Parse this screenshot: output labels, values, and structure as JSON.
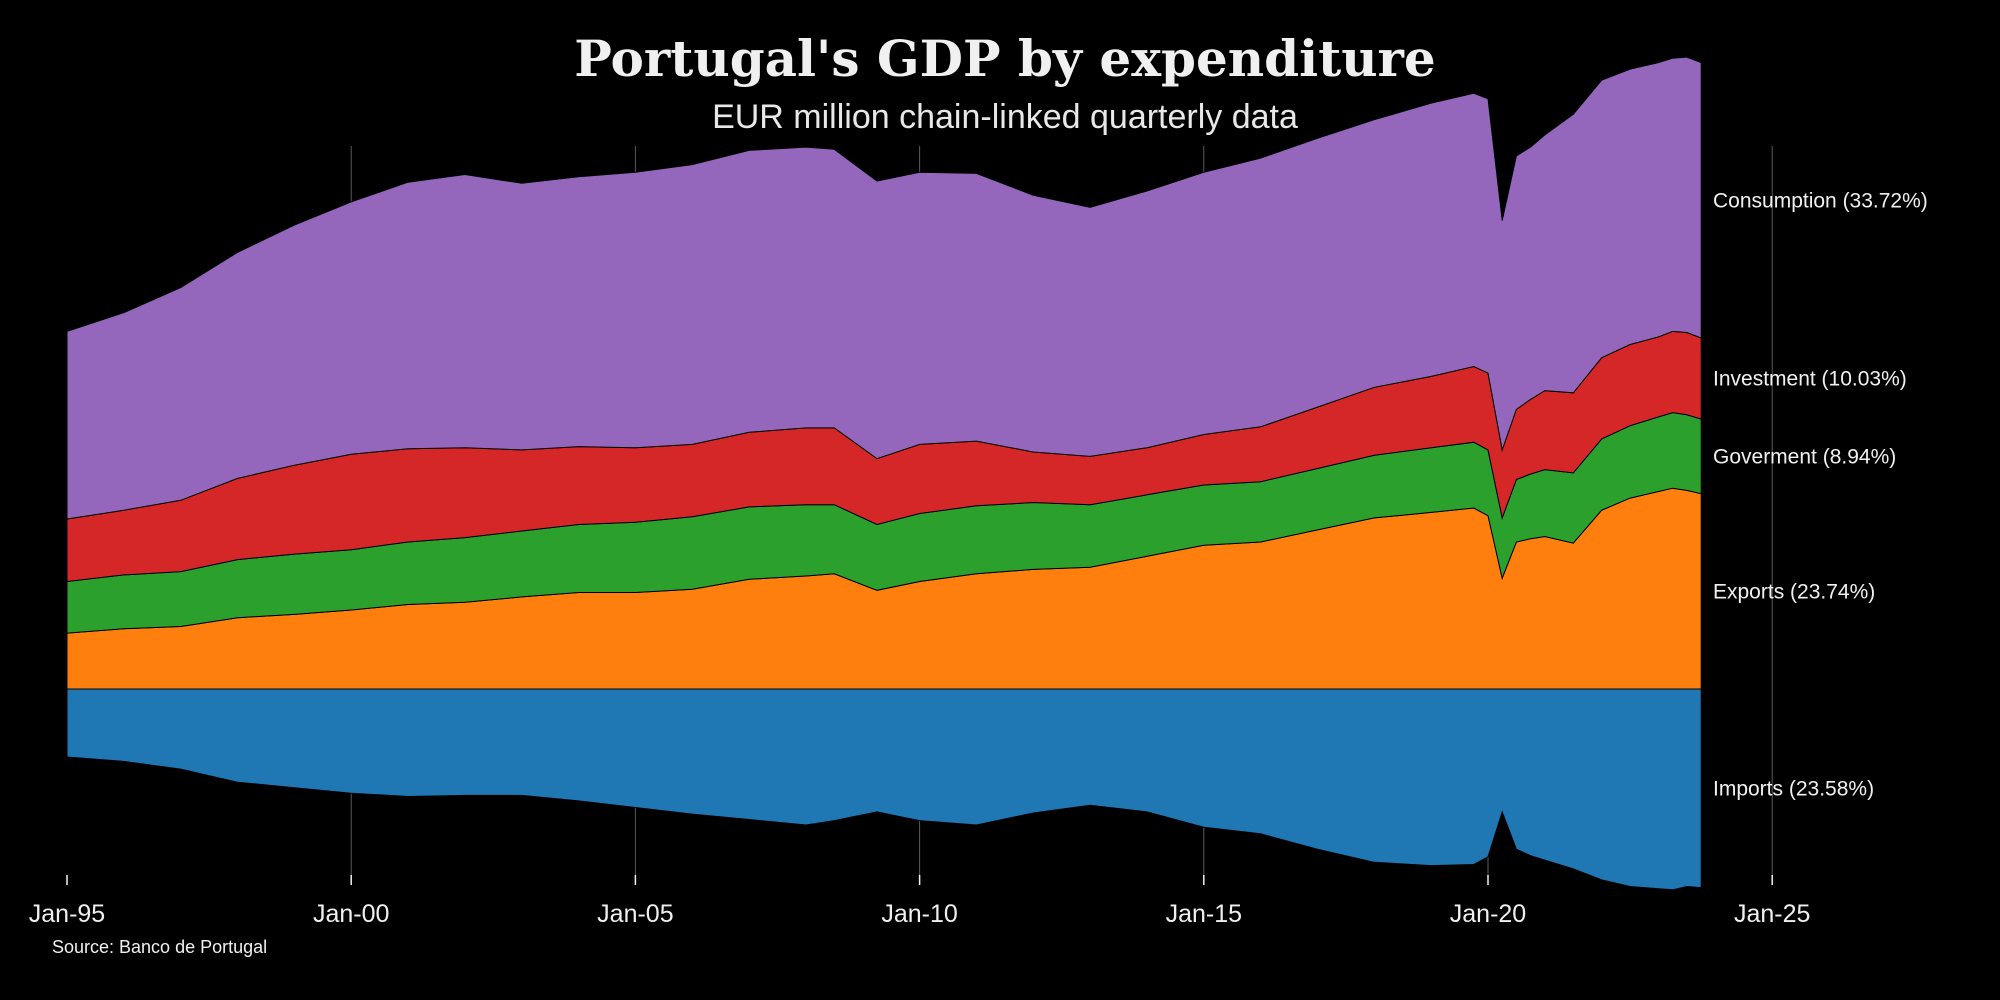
{
  "chart_data": {
    "type": "area",
    "title": "Portugal's GDP by expenditure",
    "subtitle": "EUR million chain-linked quarterly data",
    "source": "Source: Banco de Portugal",
    "xlabel": "",
    "ylabel": "",
    "grid": "vertical",
    "x_ticks": [
      "Jan-95",
      "Jan-00",
      "Jan-05",
      "Jan-10",
      "Jan-15",
      "Jan-20",
      "Jan-25"
    ],
    "x_tick_years": [
      1995,
      2000,
      2005,
      2010,
      2015,
      2020,
      2025
    ],
    "xlim": [
      1994.75,
      2025.0
    ],
    "ylim": [
      -20000,
      62000
    ],
    "x": [
      1995.0,
      1996.0,
      1997.0,
      1998.0,
      1999.0,
      2000.0,
      2001.0,
      2002.0,
      2003.0,
      2004.0,
      2005.0,
      2006.0,
      2007.0,
      2008.0,
      2008.5,
      2009.25,
      2010.0,
      2011.0,
      2012.0,
      2013.0,
      2014.0,
      2015.0,
      2016.0,
      2017.0,
      2018.0,
      2019.0,
      2019.75,
      2020.0,
      2020.25,
      2020.5,
      2020.75,
      2021.0,
      2021.5,
      2022.0,
      2022.5,
      2023.0,
      2023.25,
      2023.5,
      2023.75
    ],
    "series": [
      {
        "name": "Imports",
        "label": "Imports (23.58%)",
        "color": "#1f77b4",
        "values": [
          -6200,
          -6600,
          -7300,
          -8500,
          -9000,
          -9500,
          -9800,
          -9700,
          -9700,
          -10200,
          -10800,
          -11400,
          -11900,
          -12400,
          -12000,
          -11200,
          -12000,
          -12400,
          -11300,
          -10600,
          -11200,
          -12600,
          -13200,
          -14600,
          -15800,
          -16100,
          -16000,
          -15300,
          -11200,
          -14600,
          -15200,
          -15600,
          -16400,
          -17400,
          -18000,
          -18200,
          -18300,
          -18000,
          -18100
        ]
      },
      {
        "name": "Exports",
        "label": "Exports (23.74%)",
        "color": "#ff7f0e",
        "values": [
          5100,
          5500,
          5700,
          6500,
          6800,
          7200,
          7700,
          7900,
          8400,
          8800,
          8800,
          9100,
          10000,
          10300,
          10500,
          9000,
          9800,
          10500,
          10900,
          11100,
          12100,
          13100,
          13400,
          14500,
          15600,
          16100,
          16500,
          15800,
          10100,
          13400,
          13700,
          13900,
          13300,
          16300,
          17400,
          18000,
          18300,
          18100,
          17800
        ]
      },
      {
        "name": "Goverment",
        "label": "Goverment (8.94%)",
        "color": "#2ca02c",
        "values": [
          4700,
          4900,
          5000,
          5300,
          5500,
          5500,
          5700,
          5900,
          6000,
          6200,
          6400,
          6600,
          6600,
          6500,
          6300,
          6000,
          6200,
          6200,
          6100,
          5700,
          5600,
          5500,
          5500,
          5600,
          5700,
          5900,
          6000,
          6000,
          5500,
          5700,
          5900,
          6100,
          6400,
          6500,
          6600,
          6800,
          6900,
          6900,
          6800
        ]
      },
      {
        "name": "Investment",
        "label": "Investment (10.03%)",
        "color": "#d62728",
        "values": [
          5700,
          5900,
          6500,
          7400,
          8100,
          8700,
          8500,
          8200,
          7400,
          7100,
          6800,
          6600,
          6800,
          7000,
          7000,
          6000,
          6300,
          5900,
          4600,
          4400,
          4300,
          4600,
          5000,
          5600,
          6200,
          6500,
          6900,
          7000,
          6200,
          6400,
          6800,
          7200,
          7300,
          7400,
          7400,
          7300,
          7400,
          7500,
          7400
        ]
      },
      {
        "name": "Consumption",
        "label": "Consumption (33.72%)",
        "color": "#9467bd",
        "values": [
          17100,
          18000,
          19400,
          20600,
          21900,
          23000,
          24300,
          24900,
          24300,
          24600,
          25100,
          25500,
          25700,
          25600,
          25400,
          25300,
          24800,
          24400,
          23400,
          22700,
          23400,
          23900,
          24500,
          24500,
          24400,
          24900,
          24900,
          25000,
          20900,
          23100,
          23000,
          23300,
          25400,
          25300,
          25100,
          25000,
          24900,
          25100,
          25100
        ]
      }
    ]
  }
}
